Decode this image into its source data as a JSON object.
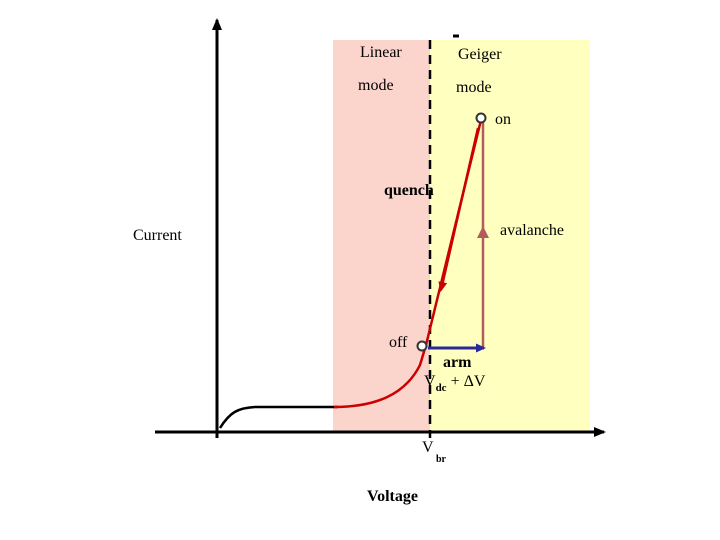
{
  "labels": {
    "linear_mode_line1": "Linear",
    "linear_mode_line2": "mode",
    "geiger_mode_line1": "Geiger",
    "geiger_mode_line2": "mode",
    "on": "on",
    "quench": "quench",
    "avalanche": "avalanche",
    "current": "Current",
    "off": "off",
    "arm": "arm",
    "vdc_main": "V",
    "vdc_sub": "dc",
    "vdc_suffix": "+ ΔV",
    "vbr_main": "V",
    "vbr_sub": "br",
    "voltage": "Voltage"
  },
  "colors": {
    "linear_region": "#fbd4cc",
    "geiger_region": "#ffffc0",
    "iv_curve": "#cc0000",
    "avalanche_line": "#b35c5c",
    "arm_arrow": "#2a2a9a",
    "axes": "#000000"
  }
}
